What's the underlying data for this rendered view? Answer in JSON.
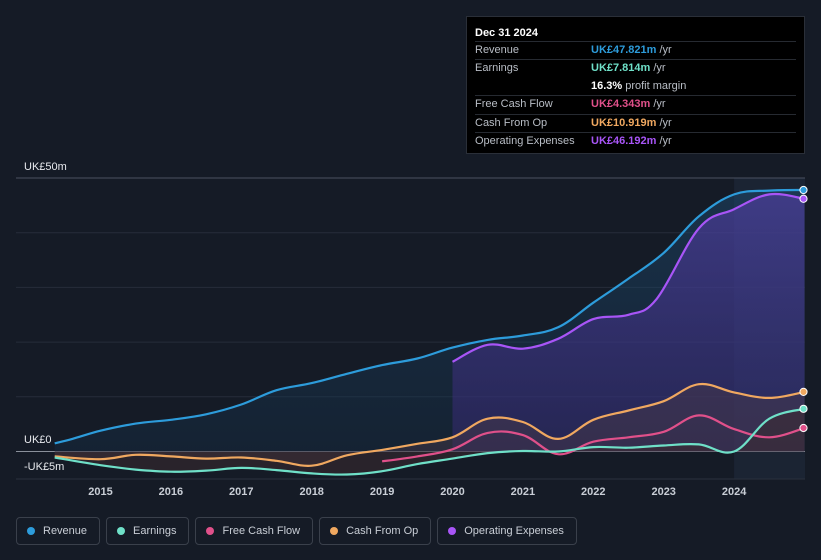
{
  "tooltip": {
    "date": "Dec 31 2024",
    "rows": [
      {
        "label": "Revenue",
        "value": "UK£47.821m",
        "unit": "/yr",
        "color": "#2d9cdb"
      },
      {
        "label": "Earnings",
        "value": "UK£7.814m",
        "unit": "/yr",
        "color": "#6fe0c8"
      },
      {
        "label": "",
        "value": "16.3%",
        "unit": "profit margin",
        "color": "#ffffff"
      },
      {
        "label": "Free Cash Flow",
        "value": "UK£4.343m",
        "unit": "/yr",
        "color": "#e0508a"
      },
      {
        "label": "Cash From Op",
        "value": "UK£10.919m",
        "unit": "/yr",
        "color": "#f0a860"
      },
      {
        "label": "Operating Expenses",
        "value": "UK£46.192m",
        "unit": "/yr",
        "color": "#a855f7"
      }
    ]
  },
  "legend": [
    {
      "label": "Revenue",
      "color": "#2d9cdb"
    },
    {
      "label": "Earnings",
      "color": "#6fe0c8"
    },
    {
      "label": "Free Cash Flow",
      "color": "#e0508a"
    },
    {
      "label": "Cash From Op",
      "color": "#f0a860"
    },
    {
      "label": "Operating Expenses",
      "color": "#a855f7"
    }
  ],
  "chart_data": {
    "type": "line",
    "units": "UK£m",
    "y_labels": {
      "top": "UK£50m",
      "zero": "UK£0",
      "bottom": "-UK£5m"
    },
    "ylim": [
      -5,
      50
    ],
    "xlim": [
      2014.35,
      2025.0
    ],
    "x_ticks": [
      "2015",
      "2016",
      "2017",
      "2018",
      "2019",
      "2020",
      "2021",
      "2022",
      "2023",
      "2024"
    ],
    "forecast_start": 2024.0,
    "series": [
      {
        "name": "Revenue",
        "color": "#2d9cdb",
        "points": [
          [
            2014.35,
            1.5
          ],
          [
            2014.6,
            2.3
          ],
          [
            2015.0,
            3.8
          ],
          [
            2015.5,
            5.1
          ],
          [
            2016.0,
            5.8
          ],
          [
            2016.5,
            6.8
          ],
          [
            2017.0,
            8.6
          ],
          [
            2017.5,
            11.2
          ],
          [
            2018.0,
            12.5
          ],
          [
            2018.5,
            14.2
          ],
          [
            2019.0,
            15.8
          ],
          [
            2019.5,
            17.0
          ],
          [
            2020.0,
            19.0
          ],
          [
            2020.5,
            20.4
          ],
          [
            2021.0,
            21.2
          ],
          [
            2021.5,
            22.7
          ],
          [
            2022.0,
            27.2
          ],
          [
            2022.5,
            31.6
          ],
          [
            2023.0,
            36.3
          ],
          [
            2023.5,
            43.0
          ],
          [
            2024.0,
            47.0
          ],
          [
            2024.5,
            47.7
          ],
          [
            2025.0,
            47.8
          ]
        ]
      },
      {
        "name": "Operating Expenses",
        "color": "#a855f7",
        "points": [
          [
            2020.0,
            16.4
          ],
          [
            2020.5,
            19.5
          ],
          [
            2021.0,
            18.8
          ],
          [
            2021.5,
            20.6
          ],
          [
            2022.0,
            24.2
          ],
          [
            2022.5,
            25.0
          ],
          [
            2022.9,
            27.9
          ],
          [
            2023.5,
            40.8
          ],
          [
            2024.0,
            44.3
          ],
          [
            2024.5,
            47.0
          ],
          [
            2025.0,
            46.2
          ]
        ]
      },
      {
        "name": "Cash From Op",
        "color": "#f0a860",
        "points": [
          [
            2014.35,
            -0.9
          ],
          [
            2015.0,
            -1.4
          ],
          [
            2015.5,
            -0.6
          ],
          [
            2016.0,
            -0.9
          ],
          [
            2016.5,
            -1.3
          ],
          [
            2017.0,
            -1.1
          ],
          [
            2017.5,
            -1.7
          ],
          [
            2018.0,
            -2.6
          ],
          [
            2018.5,
            -0.7
          ],
          [
            2019.0,
            0.3
          ],
          [
            2019.5,
            1.4
          ],
          [
            2020.0,
            2.6
          ],
          [
            2020.5,
            6.0
          ],
          [
            2021.0,
            5.4
          ],
          [
            2021.5,
            2.3
          ],
          [
            2022.0,
            5.8
          ],
          [
            2022.5,
            7.5
          ],
          [
            2023.0,
            9.2
          ],
          [
            2023.5,
            12.3
          ],
          [
            2024.0,
            10.8
          ],
          [
            2024.5,
            9.8
          ],
          [
            2025.0,
            10.9
          ]
        ]
      },
      {
        "name": "Free Cash Flow",
        "color": "#e0508a",
        "points": [
          [
            2019.0,
            -1.8
          ],
          [
            2019.5,
            -0.9
          ],
          [
            2020.0,
            0.4
          ],
          [
            2020.5,
            3.4
          ],
          [
            2021.0,
            3.0
          ],
          [
            2021.5,
            -0.5
          ],
          [
            2022.0,
            1.8
          ],
          [
            2022.5,
            2.6
          ],
          [
            2023.0,
            3.6
          ],
          [
            2023.5,
            6.6
          ],
          [
            2024.0,
            4.1
          ],
          [
            2024.5,
            2.6
          ],
          [
            2025.0,
            4.3
          ]
        ]
      },
      {
        "name": "Earnings",
        "color": "#6fe0c8",
        "points": [
          [
            2014.35,
            -1.1
          ],
          [
            2015.0,
            -2.5
          ],
          [
            2015.5,
            -3.3
          ],
          [
            2016.0,
            -3.7
          ],
          [
            2016.5,
            -3.5
          ],
          [
            2017.0,
            -3.0
          ],
          [
            2017.5,
            -3.4
          ],
          [
            2018.0,
            -4.0
          ],
          [
            2018.5,
            -4.2
          ],
          [
            2019.0,
            -3.6
          ],
          [
            2019.5,
            -2.3
          ],
          [
            2020.0,
            -1.3
          ],
          [
            2020.5,
            -0.3
          ],
          [
            2021.0,
            0.1
          ],
          [
            2021.5,
            0.0
          ],
          [
            2022.0,
            0.8
          ],
          [
            2022.5,
            0.7
          ],
          [
            2023.0,
            1.1
          ],
          [
            2023.5,
            1.3
          ],
          [
            2024.0,
            0.0
          ],
          [
            2024.5,
            6.0
          ],
          [
            2025.0,
            7.8
          ]
        ]
      }
    ]
  }
}
